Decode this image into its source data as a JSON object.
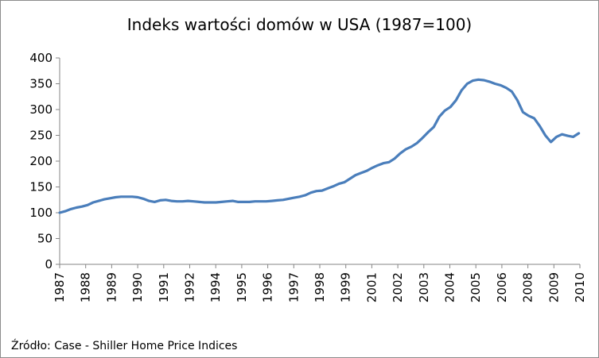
{
  "chart_data": {
    "type": "line",
    "title": "Indeks wartości domów  w USA (1987=100)",
    "source_note": "Źródło: Case - Shiller Home Price Indices",
    "xlabel": "",
    "ylabel": "",
    "ylim": [
      0,
      400
    ],
    "yticks": [
      0,
      50,
      100,
      150,
      200,
      250,
      300,
      350,
      400
    ],
    "xlim": [
      1987,
      2010.3
    ],
    "grid": false,
    "legend": "none",
    "line_color": "#4a7ebb",
    "xtick_labels": [
      "1987",
      "1988",
      "1989",
      "1990",
      "1991",
      "1992",
      "1994",
      "1995",
      "1996",
      "1997",
      "1998",
      "1999",
      "2001",
      "2002",
      "2003",
      "2004",
      "2005",
      "2006",
      "2008",
      "2009",
      "2010"
    ],
    "series": [
      {
        "x": [
          1987.0,
          1987.25,
          1987.5,
          1987.75,
          1988.0,
          1988.25,
          1988.5,
          1988.75,
          1989.0,
          1989.25,
          1989.5,
          1989.75,
          1990.0,
          1990.25,
          1990.5,
          1990.75,
          1991.0,
          1991.25,
          1991.5,
          1991.75,
          1992.0,
          1992.25,
          1992.5,
          1992.75,
          1993.0,
          1993.25,
          1993.5,
          1993.75,
          1994.0,
          1994.25,
          1994.5,
          1994.75,
          1995.0,
          1995.25,
          1995.5,
          1995.75,
          1996.0,
          1996.25,
          1996.5,
          1996.75,
          1997.0,
          1997.25,
          1997.5,
          1997.75,
          1998.0,
          1998.25,
          1998.5,
          1998.75,
          1999.0,
          1999.25,
          1999.5,
          1999.75,
          2000.0,
          2000.25,
          2000.5,
          2000.75,
          2001.0,
          2001.25,
          2001.5,
          2001.75,
          2002.0,
          2002.25,
          2002.5,
          2002.75,
          2003.0,
          2003.25,
          2003.5,
          2003.75,
          2004.0,
          2004.25,
          2004.5,
          2004.75,
          2005.0,
          2005.25,
          2005.5,
          2005.75,
          2006.0,
          2006.25,
          2006.5,
          2006.75,
          2007.0,
          2007.25,
          2007.5,
          2007.75,
          2008.0,
          2008.25,
          2008.5,
          2008.75,
          2009.0,
          2009.25,
          2009.5,
          2009.75,
          2010.0,
          2010.25
        ],
        "values": [
          100,
          103,
          107,
          110,
          112,
          115,
          120,
          123,
          126,
          128,
          130,
          131,
          131,
          131,
          130,
          127,
          123,
          121,
          124,
          125,
          123,
          122,
          122,
          123,
          122,
          121,
          120,
          120,
          120,
          121,
          122,
          123,
          121,
          121,
          121,
          122,
          122,
          122,
          123,
          124,
          125,
          127,
          129,
          131,
          134,
          139,
          142,
          143,
          147,
          151,
          156,
          159,
          166,
          173,
          177,
          181,
          187,
          192,
          196,
          198,
          205,
          215,
          223,
          228,
          235,
          245,
          256,
          266,
          286,
          298,
          305,
          318,
          337,
          350,
          356,
          358,
          357,
          354,
          350,
          347,
          342,
          335,
          318,
          295,
          288,
          283,
          268,
          250,
          237,
          247,
          252,
          249,
          247,
          254
        ]
      }
    ]
  }
}
